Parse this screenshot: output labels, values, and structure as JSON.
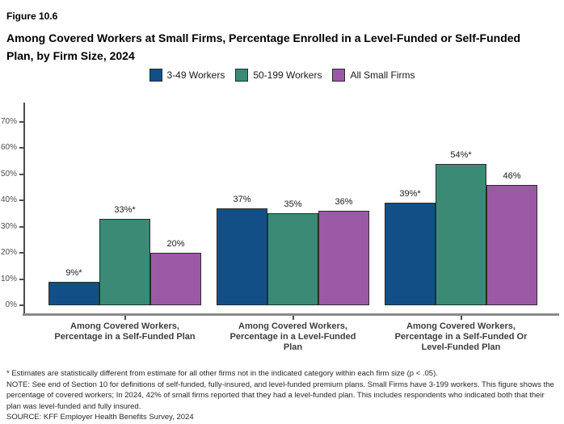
{
  "header": {
    "figure_label": "Figure 10.6"
  },
  "footnotes": [
    "* Estimates are statistically different from estimate for all other firms not in the indicated category within each firm size (p < .05).",
    "NOTE: See end of Section 10 for definitions of self-funded, fully-insured, and level-funded premium plans. Small Firms have 3-199 workers. This figure shows the percentage of covered workers; In 2024, 42% of small firms reported that they had a level-funded plan. This includes respondents who indicated both that their plan was level-funded and fully insured.",
    "SOURCE: KFF Employer Health Benefits Survey, 2024"
  ],
  "chart_data": {
    "type": "bar",
    "figure_label": "Figure 10.6",
    "title": "Among Covered Workers at Small Firms, Percentage Enrolled in a Level-Funded or Self-Funded Plan, by Firm Size, 2024",
    "categories": [
      "Among Covered Workers,\nPercentage in a Self-Funded Plan",
      "Among Covered Workers,\nPercentage in a Level-Funded\nPlan",
      "Among Covered Workers,\nPercentage in a Self-Funded Or\nLevel-Funded Plan"
    ],
    "series": [
      {
        "name": "3-49 Workers",
        "color": "#134F87",
        "values": [
          9,
          37,
          39
        ],
        "labels": [
          "9%*",
          "37%",
          "39%*"
        ]
      },
      {
        "name": "50-199 Workers",
        "color": "#3A8A75",
        "values": [
          33,
          35,
          54
        ],
        "labels": [
          "33%*",
          "35%",
          "54%*"
        ]
      },
      {
        "name": "All Small Firms",
        "color": "#9C59A5",
        "values": [
          20,
          36,
          46
        ],
        "labels": [
          "20%",
          "36%",
          "46%"
        ]
      }
    ],
    "ylabel": "",
    "xlabel": "",
    "ylim": [
      0,
      78
    ],
    "ytick_values": [
      0,
      10,
      20,
      30,
      40,
      50,
      60,
      70
    ],
    "ytick_labels": [
      "0%",
      "10%",
      "20%",
      "30%",
      "40%",
      "50%",
      "60%",
      "70%"
    ],
    "grid": false,
    "legend_position": "top"
  }
}
